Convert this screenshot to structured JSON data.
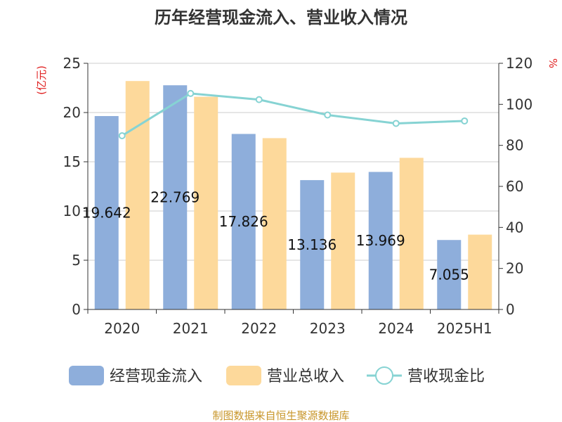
{
  "chart_data": {
    "type": "bar",
    "title": "历年经营现金流入、营业收入情况",
    "categories": [
      "2020",
      "2021",
      "2022",
      "2023",
      "2024",
      "2025H1"
    ],
    "series": [
      {
        "name": "经营现金流入",
        "kind": "bar",
        "axis": "left",
        "color": "#8eaedb",
        "values": [
          19.642,
          22.769,
          17.826,
          13.136,
          13.969,
          7.055
        ],
        "labels": [
          "19.642",
          "22.769",
          "17.826",
          "13.136",
          "13.969",
          "7.055"
        ]
      },
      {
        "name": "营业总收入",
        "kind": "bar",
        "axis": "left",
        "color": "#fdd99b",
        "values": [
          23.2,
          21.6,
          17.4,
          13.9,
          15.4,
          7.6
        ]
      },
      {
        "name": "营收现金比",
        "kind": "line",
        "axis": "right",
        "color": "#86d3d3",
        "values": [
          84.7,
          105.3,
          102.3,
          94.8,
          90.7,
          91.9
        ]
      }
    ],
    "y_left": {
      "label": "(亿元)",
      "min": 0,
      "max": 25,
      "ticks": [
        0,
        5,
        10,
        15,
        20,
        25
      ]
    },
    "y_right": {
      "label": "%",
      "min": 0,
      "max": 120,
      "ticks": [
        0,
        20,
        40,
        60,
        80,
        100,
        120
      ]
    },
    "grid": true,
    "legend_position": "bottom"
  },
  "footer": "制图数据来自恒生聚源数据库"
}
